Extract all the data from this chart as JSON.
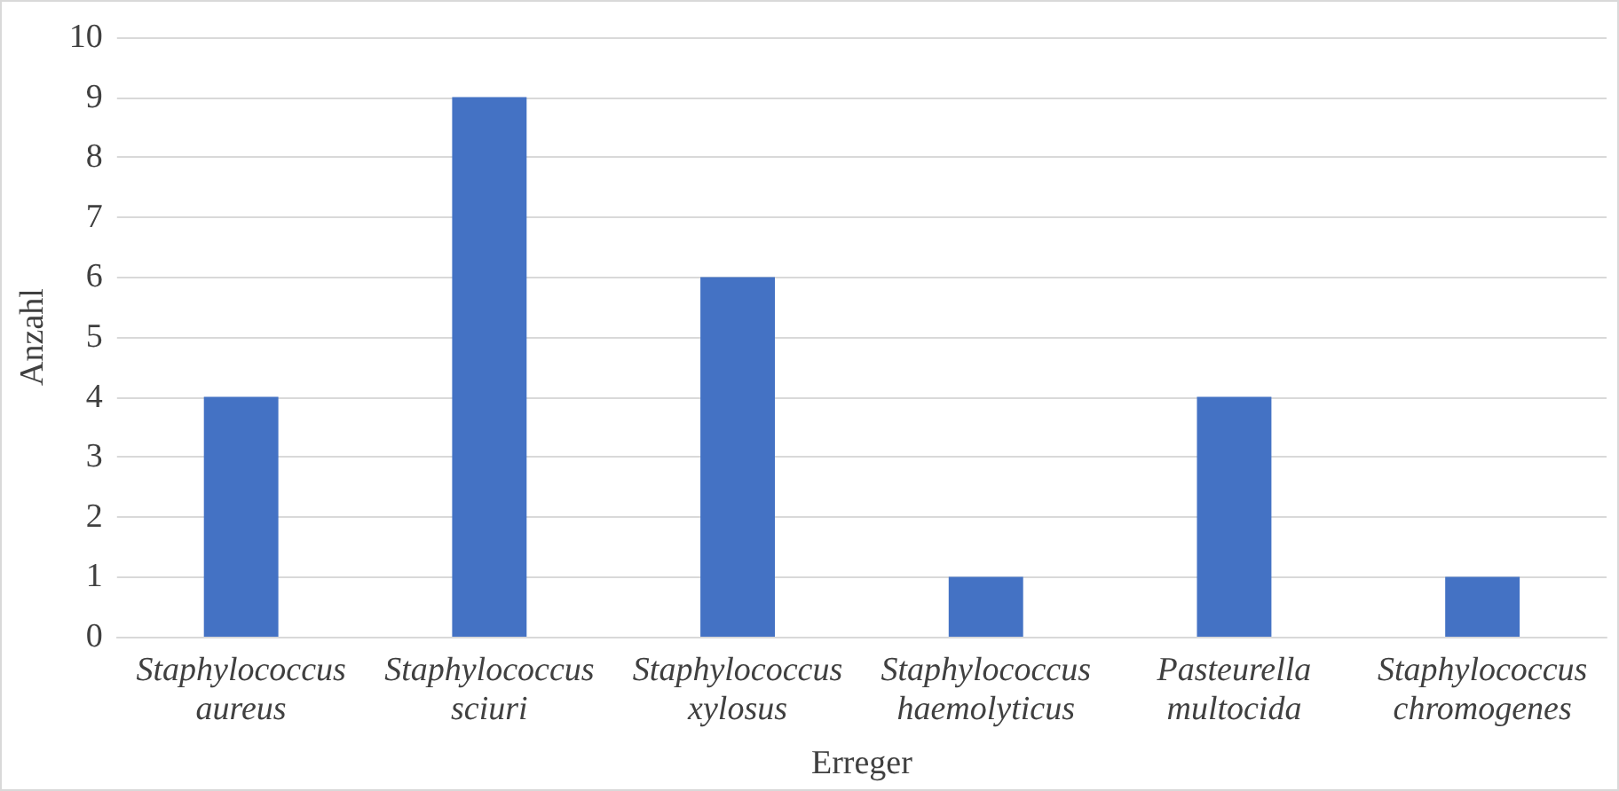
{
  "chart_data": {
    "type": "bar",
    "xlabel": "Erreger",
    "ylabel": "Anzahl",
    "categories": [
      "Staphylococcus aureus",
      "Staphylococcus sciuri",
      "Staphylococcus xylosus",
      "Staphylococcus haemolyticus",
      "Pasteurella multocida",
      "Staphylococcus chromogenes"
    ],
    "values": [
      4,
      9,
      6,
      1,
      4,
      1
    ],
    "color": "#4472c4",
    "ylim": [
      0,
      10
    ],
    "yticks": [
      0,
      1,
      2,
      3,
      4,
      5,
      6,
      7,
      8,
      9,
      10
    ],
    "grid": "y"
  }
}
